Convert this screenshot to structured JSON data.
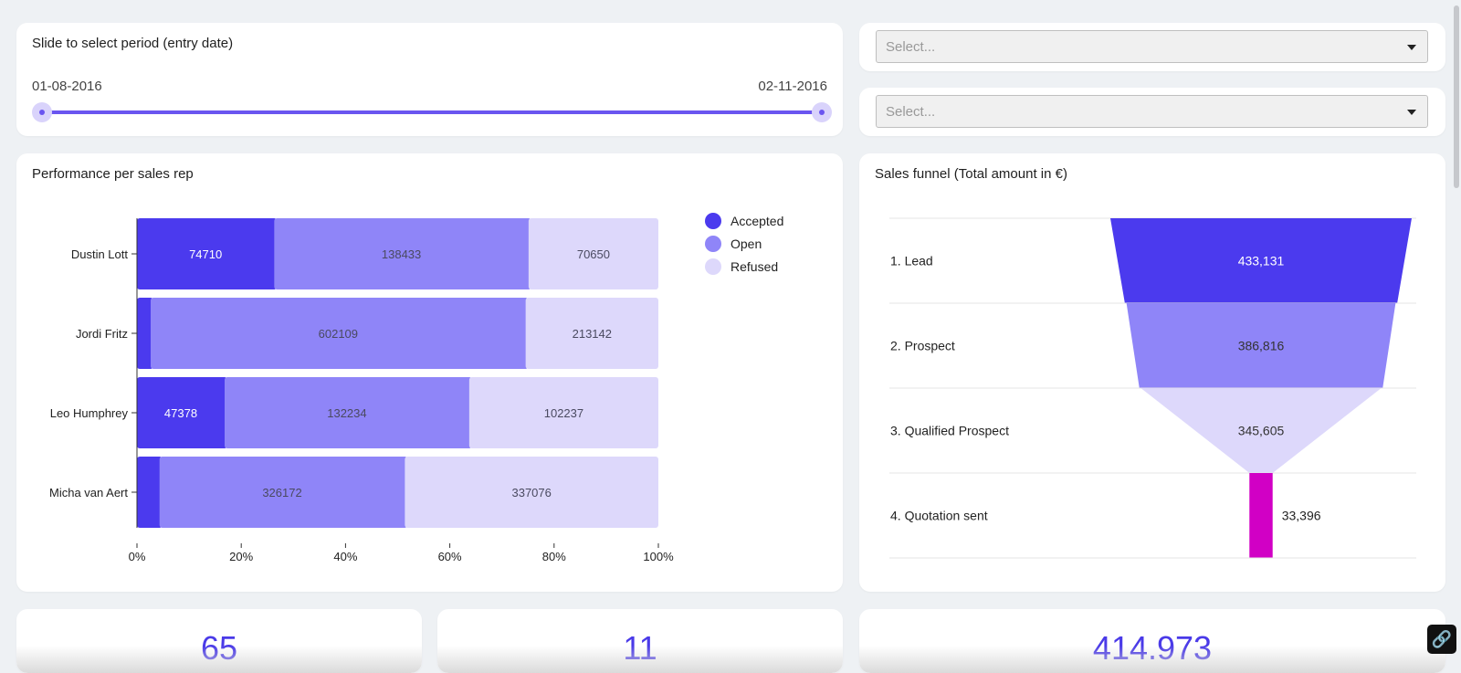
{
  "slider": {
    "title": "Slide to select period (entry date)",
    "start_date": "01-08-2016",
    "end_date": "02-11-2016"
  },
  "filters": [
    {
      "placeholder": "Select..."
    },
    {
      "placeholder": "Select..."
    }
  ],
  "performance": {
    "title": "Performance per sales rep",
    "legend": [
      "Accepted",
      "Open",
      "Refused"
    ]
  },
  "funnel": {
    "title": "Sales funnel (Total amount in €)"
  },
  "kpis": [
    {
      "value": "65"
    },
    {
      "value": "11"
    },
    {
      "value": "414.973"
    }
  ],
  "colors": {
    "accepted": "#4b3aee",
    "open": "#8f85f8",
    "refused": "#ddd8fb",
    "quotation": "#d100c5",
    "accent": "#6a55f0"
  },
  "chart_data": [
    {
      "type": "bar",
      "orientation": "horizontal",
      "stacked": "percent",
      "categories": [
        "Dustin Lott",
        "Jordi Fritz",
        "Leo Humphrey",
        "Micha van Aert"
      ],
      "series": [
        {
          "name": "Accepted",
          "values": [
            74710,
            22000,
            47378,
            30000
          ],
          "labels": [
            "74710",
            "",
            "47378",
            ""
          ]
        },
        {
          "name": "Open",
          "values": [
            138433,
            602109,
            132234,
            326172
          ],
          "labels": [
            "138433",
            "602109",
            "132234",
            "326172"
          ]
        },
        {
          "name": "Refused",
          "values": [
            70650,
            213142,
            102237,
            337076
          ],
          "labels": [
            "70650",
            "213142",
            "102237",
            "337076"
          ]
        }
      ],
      "x_ticks": [
        "0%",
        "20%",
        "40%",
        "60%",
        "80%",
        "100%"
      ],
      "xlim": [
        0,
        100
      ],
      "legend": "top-right"
    },
    {
      "type": "funnel",
      "stages": [
        {
          "label": "1. Lead",
          "value": 433131,
          "text": "433,131"
        },
        {
          "label": "2. Prospect",
          "value": 386816,
          "text": "386,816"
        },
        {
          "label": "3. Qualified Prospect",
          "value": 345605,
          "text": "345,605"
        },
        {
          "label": "4. Quotation sent",
          "value": 33396,
          "text": "33,396"
        }
      ]
    }
  ]
}
